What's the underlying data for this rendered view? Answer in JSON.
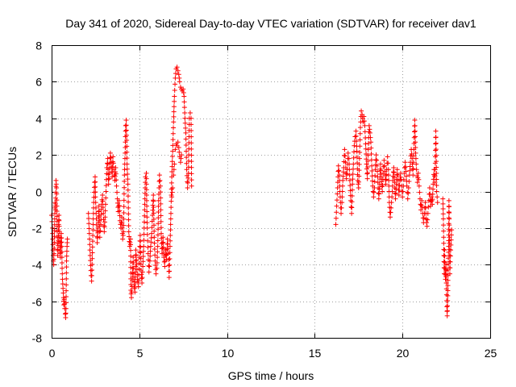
{
  "chart_data": {
    "type": "scatter",
    "title": "Day 341 of 2020, Sidereal Day-to-day VTEC variation (SDTVAR) for receiver dav1",
    "xlabel": "GPS time / hours",
    "ylabel": "SDTVAR / TECUs",
    "xlim": [
      0,
      25
    ],
    "ylim": [
      -8,
      8
    ],
    "xticks": [
      0,
      5,
      10,
      15,
      20,
      25
    ],
    "yticks": [
      -8,
      -6,
      -4,
      -2,
      0,
      2,
      4,
      6,
      8
    ],
    "xtick_labels": [
      "0",
      "5",
      "10",
      "15",
      "20",
      "25"
    ],
    "ytick_labels": [
      "-8",
      "-6",
      "-4",
      "-2",
      "0",
      "2",
      "4",
      "6",
      "8"
    ],
    "grid": true,
    "marker": "+",
    "color": "#ff0000",
    "series": [
      {
        "name": "SDTVAR",
        "points": [
          [
            0.0,
            -1.3
          ],
          [
            0.05,
            -2.0
          ],
          [
            0.08,
            -3.2
          ],
          [
            0.1,
            -3.8
          ],
          [
            0.12,
            -4.0
          ],
          [
            0.15,
            -3.1
          ],
          [
            0.18,
            -1.5
          ],
          [
            0.2,
            -0.6
          ],
          [
            0.22,
            -1.0
          ],
          [
            0.25,
            0.6
          ],
          [
            0.28,
            0.2
          ],
          [
            0.3,
            -0.8
          ],
          [
            0.32,
            -2.2
          ],
          [
            0.35,
            -3.5
          ],
          [
            0.38,
            -2.7
          ],
          [
            0.4,
            -1.8
          ],
          [
            0.42,
            -1.3
          ],
          [
            0.45,
            -2.5
          ],
          [
            0.48,
            -3.2
          ],
          [
            0.5,
            -3.6
          ],
          [
            0.52,
            -2.8
          ],
          [
            0.55,
            -2.3
          ],
          [
            0.58,
            -3.0
          ],
          [
            0.6,
            -4.2
          ],
          [
            0.62,
            -4.8
          ],
          [
            0.65,
            -5.3
          ],
          [
            0.68,
            -5.8
          ],
          [
            0.7,
            -6.2
          ],
          [
            0.72,
            -5.9
          ],
          [
            0.75,
            -6.4
          ],
          [
            0.78,
            -6.7
          ],
          [
            0.8,
            -6.9
          ],
          [
            0.82,
            -6.4
          ],
          [
            0.85,
            -3.8
          ],
          [
            0.88,
            -3.0
          ],
          [
            0.9,
            -2.6
          ],
          [
            2.1,
            -1.2
          ],
          [
            2.15,
            -2.3
          ],
          [
            2.2,
            -3.5
          ],
          [
            2.25,
            -4.6
          ],
          [
            2.28,
            -4.9
          ],
          [
            2.3,
            -4.3
          ],
          [
            2.35,
            -2.4
          ],
          [
            2.4,
            -0.6
          ],
          [
            2.45,
            0.5
          ],
          [
            2.48,
            0.8
          ],
          [
            2.5,
            -0.3
          ],
          [
            2.55,
            -1.5
          ],
          [
            2.6,
            -2.8
          ],
          [
            2.65,
            -2.0
          ],
          [
            2.7,
            -0.8
          ],
          [
            2.72,
            -1.6
          ],
          [
            2.75,
            -2.5
          ],
          [
            2.8,
            -1.8
          ],
          [
            2.85,
            -0.7
          ],
          [
            2.9,
            -0.2
          ],
          [
            2.95,
            -1.2
          ],
          [
            3.0,
            -2.2
          ],
          [
            3.05,
            -1.4
          ],
          [
            3.1,
            0.0
          ],
          [
            3.15,
            1.3
          ],
          [
            3.2,
            1.8
          ],
          [
            3.22,
            1.2
          ],
          [
            3.25,
            0.4
          ],
          [
            3.3,
            1.0
          ],
          [
            3.35,
            2.1
          ],
          [
            3.4,
            1.6
          ],
          [
            3.45,
            0.8
          ],
          [
            3.5,
            1.9
          ],
          [
            3.55,
            1.2
          ],
          [
            3.6,
            0.6
          ],
          [
            3.65,
            1.3
          ],
          [
            3.7,
            0.3
          ],
          [
            3.75,
            -0.4
          ],
          [
            3.8,
            -1.1
          ],
          [
            3.85,
            -0.5
          ],
          [
            3.9,
            -1.6
          ],
          [
            3.95,
            -2.0
          ],
          [
            4.0,
            -1.4
          ],
          [
            4.05,
            -2.6
          ],
          [
            4.1,
            -2.2
          ],
          [
            4.15,
            0.9
          ],
          [
            4.2,
            2.4
          ],
          [
            4.22,
            3.6
          ],
          [
            4.25,
            3.9
          ],
          [
            4.28,
            2.8
          ],
          [
            4.3,
            1.5
          ],
          [
            4.35,
            0.4
          ],
          [
            4.4,
            -2.2
          ],
          [
            4.45,
            -3.0
          ],
          [
            4.5,
            -2.6
          ],
          [
            4.52,
            -5.4
          ],
          [
            4.55,
            -5.8
          ],
          [
            4.6,
            -4.9
          ],
          [
            4.62,
            -4.2
          ],
          [
            4.65,
            -3.6
          ],
          [
            4.7,
            -5.1
          ],
          [
            4.75,
            -5.5
          ],
          [
            4.78,
            -4.4
          ],
          [
            4.8,
            -3.2
          ],
          [
            4.85,
            -4.0
          ],
          [
            4.9,
            -4.8
          ],
          [
            4.95,
            -5.2
          ],
          [
            5.0,
            -3.6
          ],
          [
            5.05,
            -2.4
          ],
          [
            5.1,
            -4.3
          ],
          [
            5.15,
            -5.0
          ],
          [
            5.2,
            -4.1
          ],
          [
            5.25,
            -3.0
          ],
          [
            5.3,
            -1.0
          ],
          [
            5.35,
            0.8
          ],
          [
            5.4,
            1.0
          ],
          [
            5.42,
            -0.5
          ],
          [
            5.45,
            -2.0
          ],
          [
            5.5,
            -3.4
          ],
          [
            5.55,
            -4.4
          ],
          [
            5.6,
            -3.8
          ],
          [
            5.65,
            -3.0
          ],
          [
            5.7,
            -2.3
          ],
          [
            5.75,
            -1.3
          ],
          [
            5.8,
            -0.2
          ],
          [
            5.85,
            -2.5
          ],
          [
            5.9,
            -3.8
          ],
          [
            5.95,
            -4.5
          ],
          [
            6.0,
            -4.2
          ],
          [
            6.05,
            -3.0
          ],
          [
            6.1,
            -0.5
          ],
          [
            6.15,
            0.9
          ],
          [
            6.2,
            0.3
          ],
          [
            6.25,
            -2.3
          ],
          [
            6.3,
            -3.4
          ],
          [
            6.35,
            -2.5
          ],
          [
            6.4,
            -3.6
          ],
          [
            6.45,
            -4.1
          ],
          [
            6.5,
            -3.2
          ],
          [
            6.55,
            -3.7
          ],
          [
            6.6,
            -2.6
          ],
          [
            6.65,
            -3.4
          ],
          [
            6.7,
            -4.7
          ],
          [
            6.75,
            -3.0
          ],
          [
            6.8,
            -1.2
          ],
          [
            6.85,
            0.8
          ],
          [
            6.9,
            2.2
          ],
          [
            6.95,
            3.8
          ],
          [
            7.0,
            5.2
          ],
          [
            7.05,
            6.2
          ],
          [
            7.1,
            6.7
          ],
          [
            7.15,
            6.8
          ],
          [
            7.2,
            6.6
          ],
          [
            7.25,
            6.4
          ],
          [
            7.3,
            6.0
          ],
          [
            7.35,
            5.7
          ],
          [
            7.4,
            5.6
          ],
          [
            7.45,
            5.5
          ],
          [
            7.5,
            5.6
          ],
          [
            7.55,
            5.2
          ],
          [
            7.6,
            4.0
          ],
          [
            7.65,
            3.2
          ],
          [
            7.7,
            1.2
          ],
          [
            7.75,
            0.2
          ],
          [
            7.8,
            1.0
          ],
          [
            7.85,
            4.0
          ],
          [
            7.9,
            4.3
          ],
          [
            7.95,
            4.0
          ],
          [
            7.98,
            0.3
          ],
          [
            7.05,
            2.3
          ],
          [
            7.1,
            2.6
          ],
          [
            7.15,
            2.5
          ],
          [
            7.2,
            2.7
          ],
          [
            7.25,
            2.4
          ],
          [
            7.3,
            1.9
          ],
          [
            7.35,
            1.6
          ],
          [
            7.4,
            2.0
          ],
          [
            6.95,
            0.9
          ],
          [
            7.0,
            1.5
          ],
          [
            6.85,
            -0.3
          ],
          [
            6.9,
            0.2
          ],
          [
            16.2,
            -1.8
          ],
          [
            16.25,
            -0.8
          ],
          [
            16.3,
            0.2
          ],
          [
            16.35,
            1.4
          ],
          [
            16.4,
            0.9
          ],
          [
            16.45,
            -0.3
          ],
          [
            16.5,
            -1.2
          ],
          [
            16.55,
            -0.6
          ],
          [
            16.6,
            0.6
          ],
          [
            16.65,
            1.3
          ],
          [
            16.7,
            2.3
          ],
          [
            16.75,
            1.6
          ],
          [
            16.8,
            0.7
          ],
          [
            16.85,
            1.2
          ],
          [
            16.9,
            2.1
          ],
          [
            16.95,
            1.8
          ],
          [
            17.0,
            0.6
          ],
          [
            17.05,
            -0.5
          ],
          [
            17.1,
            -1.2
          ],
          [
            17.15,
            0.4
          ],
          [
            17.2,
            1.5
          ],
          [
            17.25,
            2.5
          ],
          [
            17.3,
            3.0
          ],
          [
            17.35,
            3.3
          ],
          [
            17.4,
            2.2
          ],
          [
            17.45,
            0.6
          ],
          [
            17.5,
            0.2
          ],
          [
            17.55,
            1.8
          ],
          [
            17.6,
            3.5
          ],
          [
            17.65,
            4.4
          ],
          [
            17.7,
            4.2
          ],
          [
            17.75,
            3.8
          ],
          [
            17.8,
            4.1
          ],
          [
            17.85,
            3.6
          ],
          [
            17.9,
            2.6
          ],
          [
            17.95,
            1.5
          ],
          [
            18.0,
            0.7
          ],
          [
            18.05,
            2.3
          ],
          [
            18.1,
            3.6
          ],
          [
            18.15,
            3.2
          ],
          [
            18.2,
            2.7
          ],
          [
            18.25,
            1.4
          ],
          [
            18.3,
            0.3
          ],
          [
            18.35,
            -0.3
          ],
          [
            18.4,
            0.2
          ],
          [
            18.45,
            1.2
          ],
          [
            18.5,
            2.0
          ],
          [
            18.55,
            1.4
          ],
          [
            18.6,
            0.5
          ],
          [
            18.65,
            -0.4
          ],
          [
            18.7,
            0.4
          ],
          [
            18.75,
            1.5
          ],
          [
            18.8,
            0.8
          ],
          [
            18.85,
            0.0
          ],
          [
            18.9,
            1.0
          ],
          [
            18.95,
            1.7
          ],
          [
            19.0,
            1.1
          ],
          [
            19.05,
            0.4
          ],
          [
            19.1,
            1.2
          ],
          [
            19.15,
            1.9
          ],
          [
            19.2,
            1.2
          ],
          [
            19.25,
            -0.6
          ],
          [
            19.3,
            -1.4
          ],
          [
            19.35,
            -0.9
          ],
          [
            19.4,
            -0.3
          ],
          [
            19.45,
            0.6
          ],
          [
            19.5,
            1.3
          ],
          [
            19.55,
            0.5
          ],
          [
            19.6,
            -0.4
          ],
          [
            19.65,
            0.4
          ],
          [
            19.7,
            1.2
          ],
          [
            19.75,
            0.6
          ],
          [
            19.8,
            -0.2
          ],
          [
            19.85,
            0.6
          ],
          [
            19.9,
            1.0
          ],
          [
            19.95,
            0.3
          ],
          [
            20.0,
            -0.3
          ],
          [
            20.05,
            0.3
          ],
          [
            20.1,
            1.0
          ],
          [
            20.15,
            1.6
          ],
          [
            20.2,
            1.1
          ],
          [
            20.25,
            0.3
          ],
          [
            20.3,
            -0.4
          ],
          [
            20.35,
            0.2
          ],
          [
            20.4,
            0.9
          ],
          [
            20.45,
            1.6
          ],
          [
            20.5,
            2.3
          ],
          [
            20.55,
            1.8
          ],
          [
            20.6,
            0.9
          ],
          [
            20.65,
            2.3
          ],
          [
            20.7,
            3.9
          ],
          [
            20.75,
            2.1
          ],
          [
            20.8,
            1.2
          ],
          [
            20.85,
            0.5
          ],
          [
            20.9,
            1.0
          ],
          [
            21.0,
            -0.4
          ],
          [
            21.05,
            -1.0
          ],
          [
            21.1,
            -0.5
          ],
          [
            21.15,
            -1.2
          ],
          [
            21.2,
            -1.7
          ],
          [
            21.25,
            -1.2
          ],
          [
            21.3,
            -0.6
          ],
          [
            21.35,
            -1.5
          ],
          [
            21.4,
            -1.9
          ],
          [
            21.45,
            -1.2
          ],
          [
            21.5,
            -0.5
          ],
          [
            21.55,
            0.2
          ],
          [
            21.6,
            -0.8
          ],
          [
            21.65,
            -0.3
          ],
          [
            21.7,
            -0.7
          ],
          [
            21.75,
            0.4
          ],
          [
            21.8,
            1.2
          ],
          [
            21.85,
            0.5
          ],
          [
            21.9,
            3.3
          ],
          [
            21.95,
            0.0
          ],
          [
            22.0,
            -0.6
          ],
          [
            22.3,
            -0.4
          ],
          [
            22.33,
            -1.5
          ],
          [
            22.36,
            -3.5
          ],
          [
            22.38,
            -4.5
          ],
          [
            22.4,
            -3.2
          ],
          [
            22.42,
            -4.2
          ],
          [
            22.45,
            -4.8
          ],
          [
            22.48,
            -4.0
          ],
          [
            22.5,
            -5.0
          ],
          [
            22.53,
            -6.3
          ],
          [
            22.55,
            -6.8
          ],
          [
            22.58,
            -5.7
          ],
          [
            22.6,
            -4.3
          ],
          [
            22.63,
            -3.0
          ],
          [
            22.65,
            -0.5
          ],
          [
            22.68,
            -2.5
          ],
          [
            22.7,
            -4.5
          ],
          [
            22.75,
            -3.2
          ],
          [
            22.8,
            -2.1
          ]
        ]
      }
    ]
  }
}
